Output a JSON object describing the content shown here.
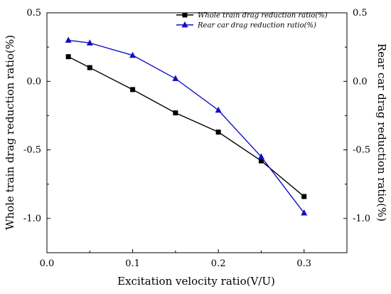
{
  "chart_data": {
    "type": "line",
    "xlabel": "Excitation velocity ratio(V/U)",
    "ylabel_left": "Whole train drag reduction ratio(%)",
    "ylabel_right": "Rear car drag reduction ratio(%)",
    "xlim": [
      0.0,
      0.35
    ],
    "ylim": [
      -1.25,
      0.5
    ],
    "x_ticks": [
      0.0,
      0.1,
      0.2,
      0.3
    ],
    "x_tick_labels": [
      "0.0",
      "0.1",
      "0.2",
      "0.3"
    ],
    "y_ticks": [
      0.5,
      0.0,
      -0.5,
      -1.0
    ],
    "y_tick_labels": [
      "0.5",
      "0.0",
      "-0.5",
      "-1.0"
    ],
    "grid": false,
    "legend_position": "top-right",
    "series": [
      {
        "name": "Whole train drag reduction ratio(%)",
        "color": "#000000",
        "marker": "square",
        "x": [
          0.025,
          0.05,
          0.1,
          0.15,
          0.2,
          0.25,
          0.3
        ],
        "y": [
          0.18,
          0.1,
          -0.06,
          -0.23,
          -0.37,
          -0.58,
          -0.84
        ]
      },
      {
        "name": "Rear car drag reduction ratio(%)",
        "color": "#1010c0",
        "marker": "triangle",
        "x": [
          0.025,
          0.05,
          0.1,
          0.15,
          0.2,
          0.25,
          0.3
        ],
        "y": [
          0.3,
          0.28,
          0.19,
          0.02,
          -0.21,
          -0.55,
          -0.96
        ]
      }
    ]
  }
}
